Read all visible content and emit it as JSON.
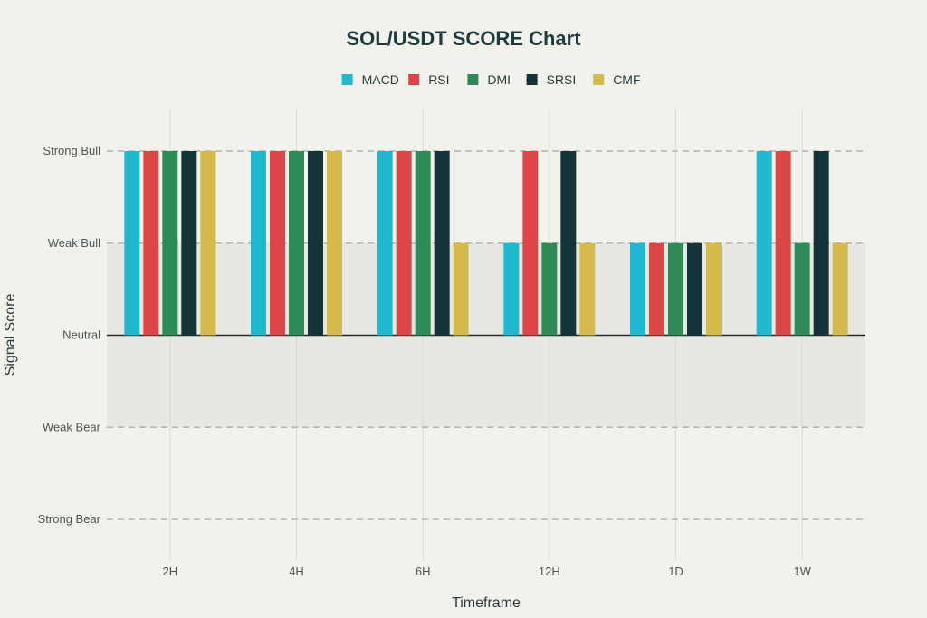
{
  "chart_data": {
    "type": "bar",
    "title": "SOL/USDT SCORE Chart",
    "xlabel": "Timeframe",
    "ylabel": "Signal Score",
    "categories": [
      "2H",
      "4H",
      "6H",
      "12H",
      "1D",
      "1W"
    ],
    "y_levels": [
      {
        "value": 2,
        "label": "Strong Bull"
      },
      {
        "value": 1,
        "label": "Weak Bull"
      },
      {
        "value": 0,
        "label": "Neutral"
      },
      {
        "value": -1,
        "label": "Weak Bear"
      },
      {
        "value": -2,
        "label": "Strong Bear"
      }
    ],
    "ylim": [
      -2,
      2
    ],
    "legend_position": "top-center",
    "series": [
      {
        "name": "MACD",
        "color": "#21b8cf",
        "values": [
          2,
          2,
          2,
          1,
          1,
          2
        ]
      },
      {
        "name": "RSI",
        "color": "#dd4646",
        "values": [
          2,
          2,
          2,
          2,
          1,
          2
        ]
      },
      {
        "name": "DMI",
        "color": "#2e8b57",
        "values": [
          2,
          2,
          2,
          1,
          1,
          1
        ]
      },
      {
        "name": "SRSI",
        "color": "#14343a",
        "values": [
          2,
          2,
          2,
          2,
          1,
          2
        ]
      },
      {
        "name": "CMF",
        "color": "#d4b94c",
        "values": [
          2,
          2,
          1,
          1,
          1,
          1
        ]
      }
    ],
    "shaded_band": [
      -1,
      1
    ],
    "grid": true
  }
}
